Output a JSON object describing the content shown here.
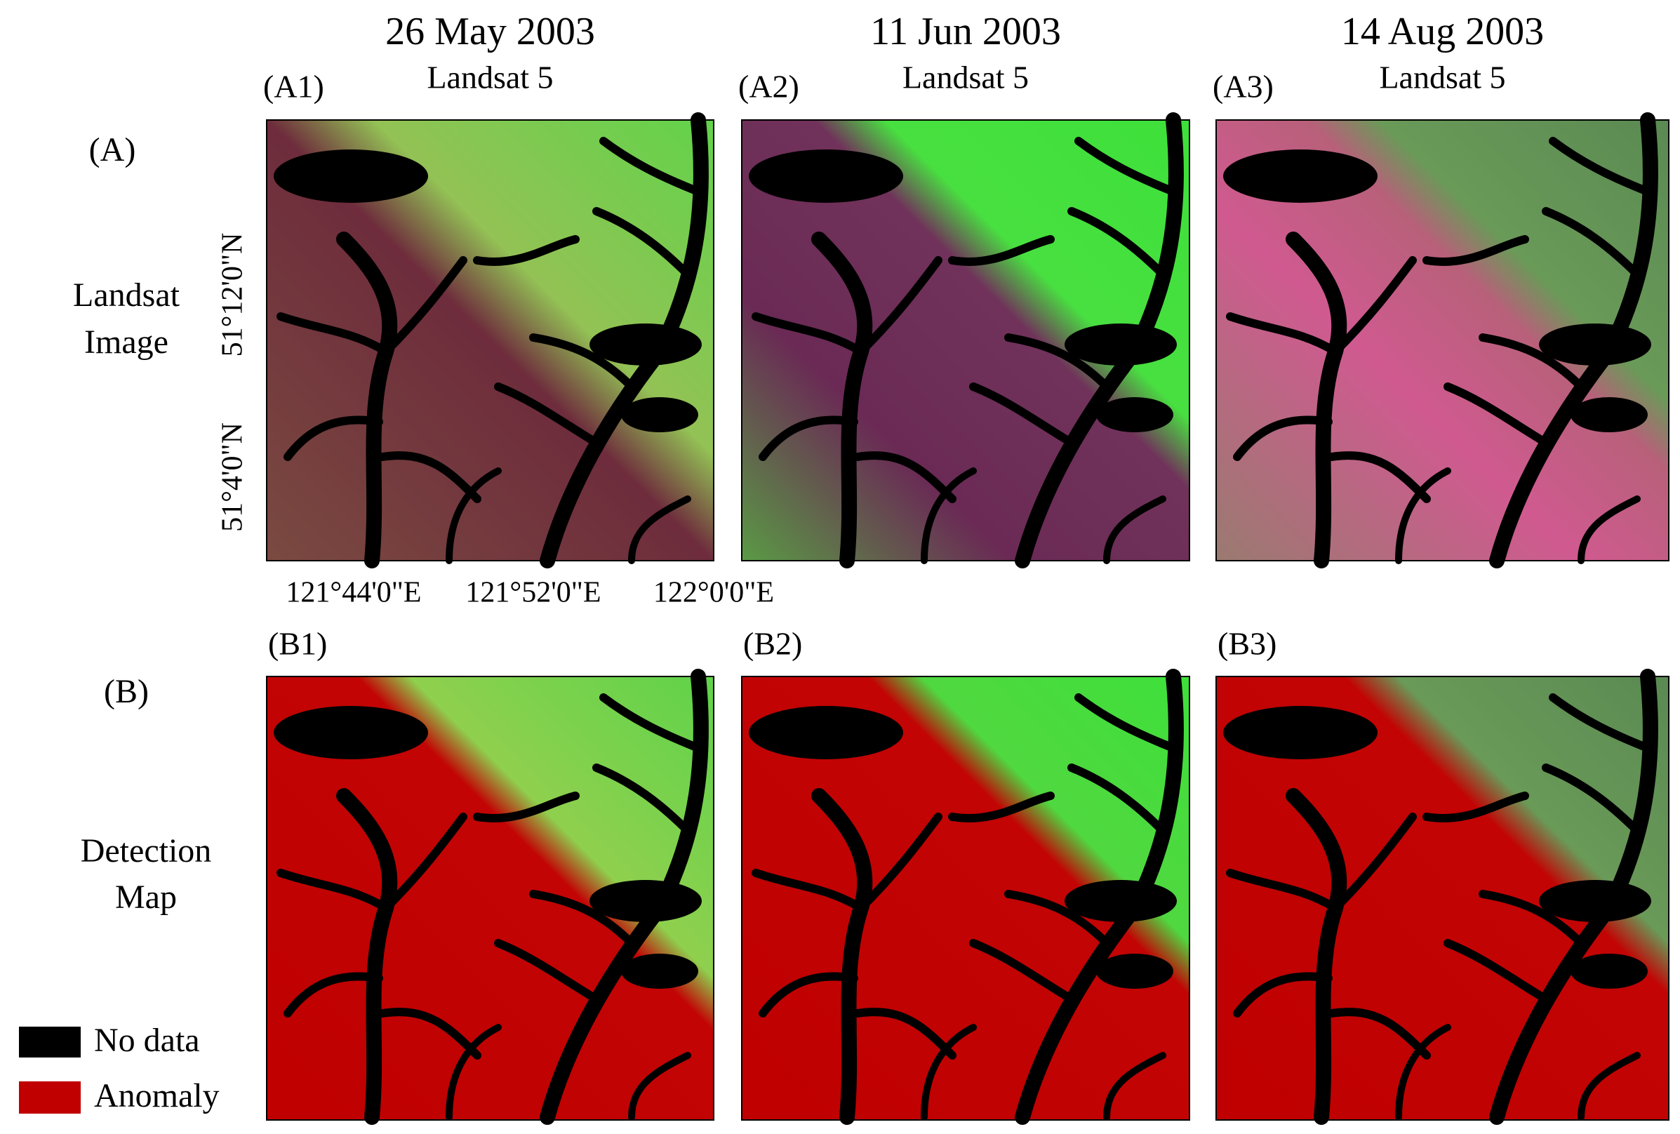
{
  "columns": [
    {
      "date": "26 May 2003",
      "sensor": "Landsat 5",
      "panel_a": "(A1)",
      "panel_b": "(B1)"
    },
    {
      "date": "11 Jun 2003",
      "sensor": "Landsat 5",
      "panel_a": "(A2)",
      "panel_b": "(B2)"
    },
    {
      "date": "14 Aug 2003",
      "sensor": "Landsat 5",
      "panel_a": "(A3)",
      "panel_b": "(B3)"
    }
  ],
  "rows": [
    {
      "label": "(A)",
      "name_lines": [
        "Landsat",
        "Image"
      ]
    },
    {
      "label": "(B)",
      "name_lines": [
        "Detection",
        "Map"
      ]
    }
  ],
  "lat_labels": [
    "51°12'0\"N",
    "51°4'0\"N"
  ],
  "lon_labels": [
    "121°44'0\"E",
    "121°52'0\"E",
    "122°0'0\"E"
  ],
  "legend": [
    {
      "label": "No data"
    },
    {
      "label": "Anomaly"
    }
  ]
}
